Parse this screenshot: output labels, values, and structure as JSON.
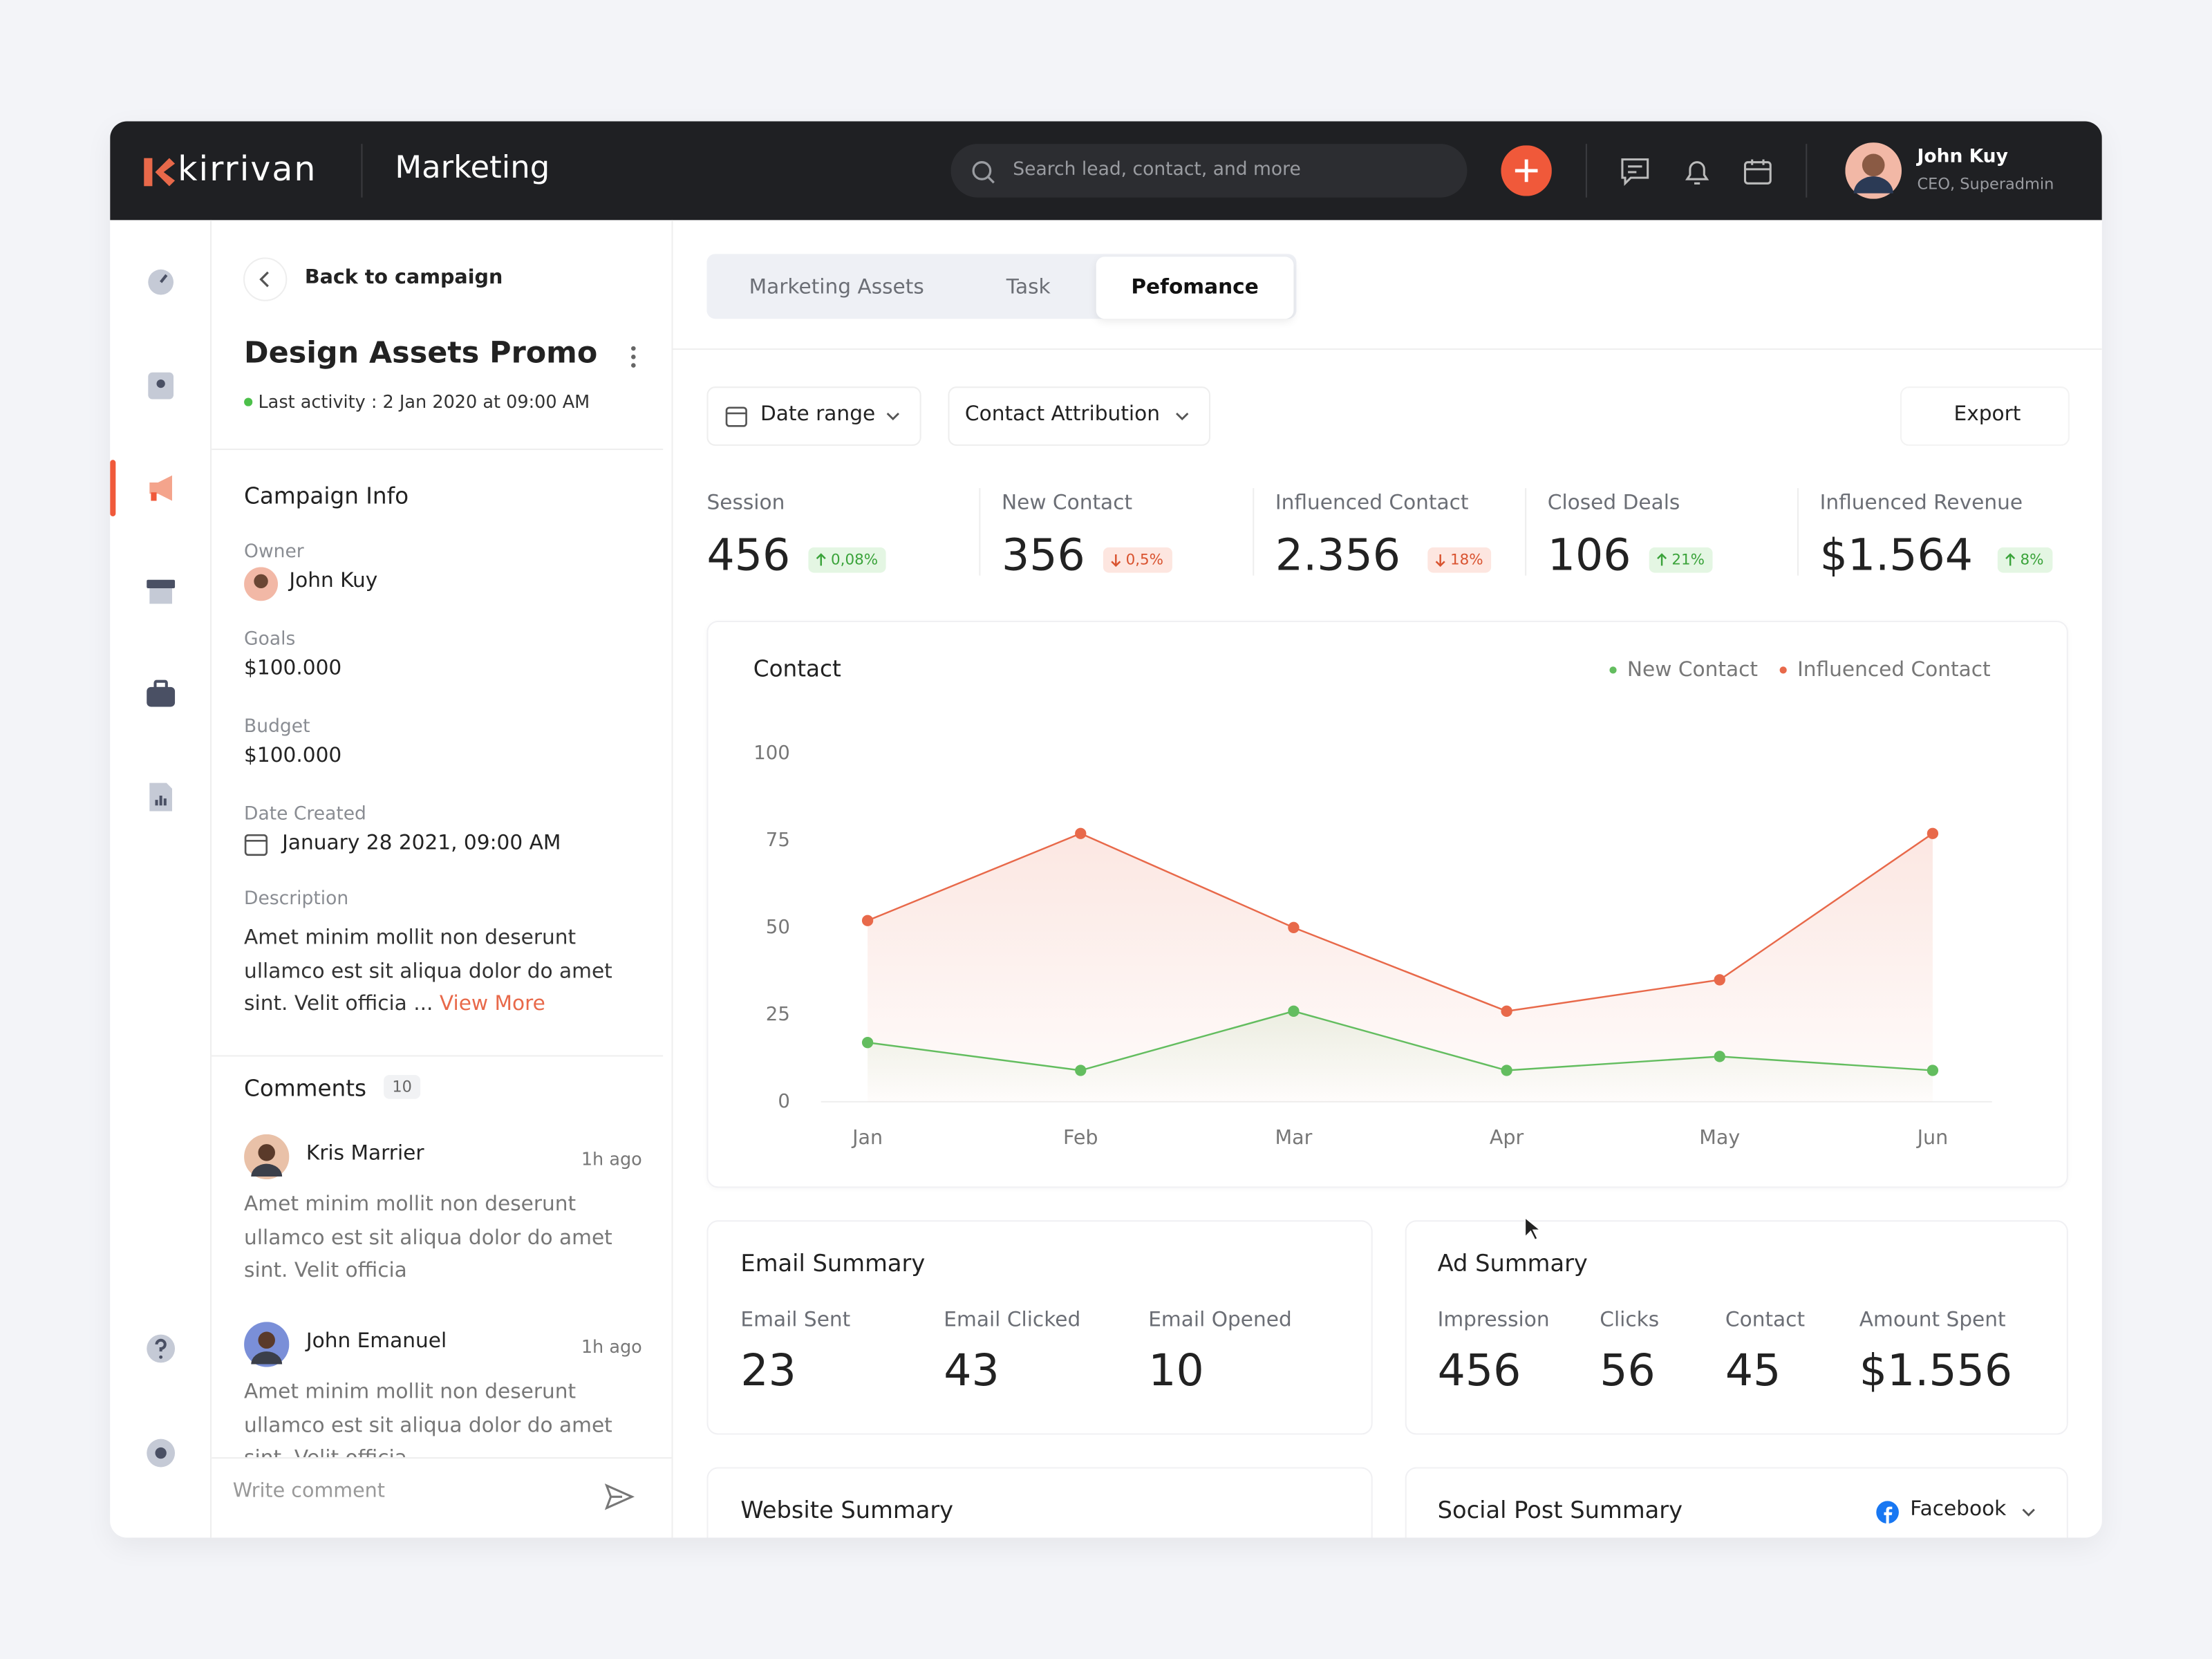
{
  "header": {
    "logo": "kirrivan",
    "section": "Marketing",
    "search_placeholder": "Search lead, contact, and more",
    "user_name": "John Kuy",
    "user_role": "CEO, Superadmin"
  },
  "campaign": {
    "back": "Back to campaign",
    "title": "Design Assets Promo",
    "last_activity": "Last activity : 2 Jan 2020 at 09:00 AM",
    "info_title": "Campaign Info",
    "fields": [
      {
        "label": "Owner",
        "value": "John Kuy"
      },
      {
        "label": "Goals",
        "value": "$100.000"
      },
      {
        "label": "Budget",
        "value": "$100.000"
      },
      {
        "label": "Date Created",
        "value": "January 28 2021, 09:00 AM"
      }
    ],
    "description_label": "Description",
    "description": "Amet minim mollit non deserunt ullamco est sit aliqua dolor do amet sint. Velit officia ...",
    "view_more": "View More"
  },
  "comments": {
    "title": "Comments",
    "count": 10,
    "placeholder": "Write comment",
    "items": [
      {
        "name": "Kris Marrier",
        "time": "1h ago",
        "text": "Amet minim mollit non deserunt ullamco est sit aliqua dolor do amet sint. Velit officia"
      },
      {
        "name": "John Emanuel",
        "time": "1h ago",
        "text": "Amet minim mollit non deserunt ullamco est sit aliqua dolor do amet sint. Velit officia"
      }
    ]
  },
  "tabs": {
    "items": [
      "Marketing Assets",
      "Task",
      "Pefomance"
    ],
    "active": 2
  },
  "filters": {
    "date_range": "Date range",
    "attribution": "Contact Attribution",
    "export": "Export"
  },
  "stats": [
    {
      "label": "Session",
      "value": "456",
      "change": "0,08%",
      "trend": "up"
    },
    {
      "label": "New Contact",
      "value": "356",
      "change": "0,5%",
      "trend": "down"
    },
    {
      "label": "Influenced Contact",
      "value": "2.356",
      "change": "18%",
      "trend": "down"
    },
    {
      "label": "Closed Deals",
      "value": "106",
      "change": "21%",
      "trend": "up"
    },
    {
      "label": "Influenced Revenue",
      "value": "$1.564",
      "change": "8%",
      "trend": "up"
    }
  ],
  "chart_data": {
    "type": "line",
    "title": "Contact",
    "categories": [
      "Jan",
      "Feb",
      "Mar",
      "Apr",
      "May",
      "Jun"
    ],
    "series": [
      {
        "name": "New Contact",
        "color": "#63bd5f",
        "values": [
          17,
          9,
          26,
          9,
          13,
          9
        ]
      },
      {
        "name": "Influenced Contact",
        "color": "#e8694a",
        "values": [
          52,
          77,
          50,
          26,
          35,
          77
        ]
      }
    ],
    "ylim": [
      0,
      100
    ],
    "yticks": [
      0,
      25,
      50,
      75,
      100
    ],
    "grid": false,
    "legend": "top-right"
  },
  "email_summary": {
    "title": "Email Summary",
    "items": [
      {
        "label": "Email Sent",
        "value": "23"
      },
      {
        "label": "Email Clicked",
        "value": "43"
      },
      {
        "label": "Email Opened",
        "value": "10"
      }
    ]
  },
  "ad_summary": {
    "title": "Ad Summary",
    "items": [
      {
        "label": "Impression",
        "value": "456"
      },
      {
        "label": "Clicks",
        "value": "56"
      },
      {
        "label": "Contact",
        "value": "45"
      },
      {
        "label": "Amount Spent",
        "value": "$1.556"
      }
    ]
  },
  "website_summary": {
    "title": "Website Summary"
  },
  "social_summary": {
    "title": "Social Post Summary",
    "platform": "Facebook"
  }
}
